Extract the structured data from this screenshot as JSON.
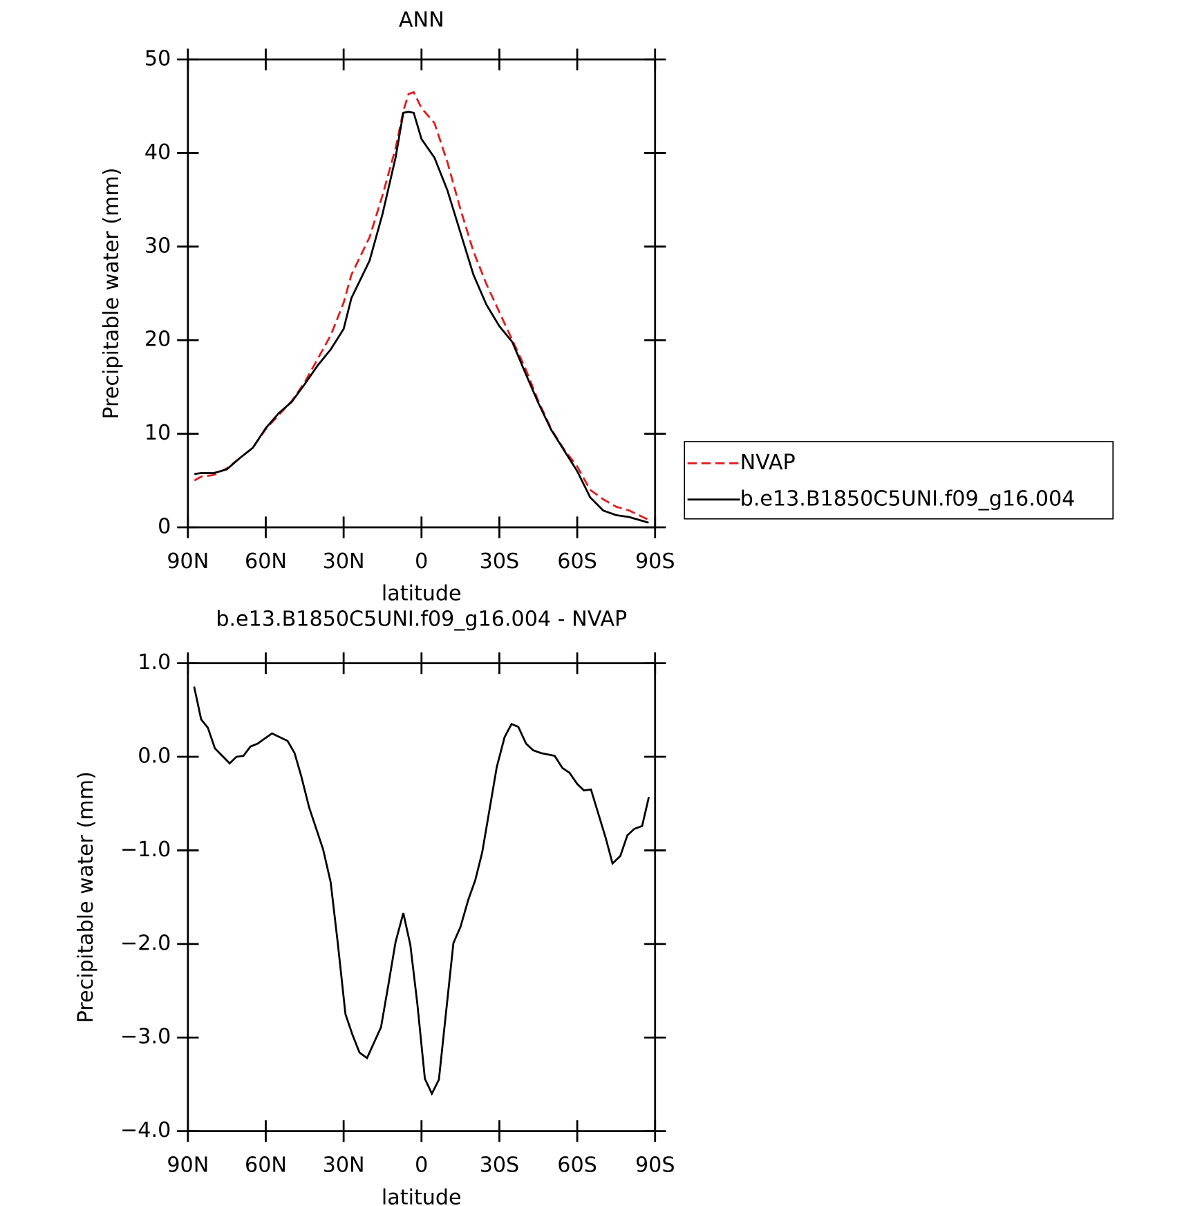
{
  "chart_data": [
    {
      "type": "line",
      "title": "ANN",
      "xlabel": "latitude",
      "ylabel": "Precipitable water (mm)",
      "x": [
        87.5,
        85,
        80,
        75,
        70,
        65,
        60,
        55,
        50,
        45,
        40,
        35,
        30,
        27,
        20,
        15,
        10,
        7,
        5,
        3,
        0,
        -5,
        -10,
        -15,
        -20,
        -25,
        -30,
        -35,
        -40,
        -45,
        -50,
        -55,
        -60,
        -65,
        -70,
        -75,
        -80,
        -87.5
      ],
      "series": [
        {
          "name": "NVAP",
          "color": "#e41a1c",
          "dashed": true,
          "values": [
            5.0,
            5.4,
            5.6,
            6.3,
            7.4,
            8.5,
            10.5,
            12.0,
            13.5,
            15.5,
            18.0,
            20.5,
            24.0,
            27.0,
            31.0,
            35.5,
            40.5,
            44.5,
            46.3,
            46.5,
            44.8,
            43.2,
            39.0,
            34.0,
            29.5,
            26.0,
            23.0,
            20.0,
            17.0,
            13.5,
            10.5,
            8.3,
            6.5,
            4.0,
            3.0,
            2.2,
            1.8,
            0.8
          ]
        },
        {
          "name": "b.e13.B1850C5UNI.f09_g16.004",
          "color": "#000000",
          "dashed": false,
          "values": [
            5.7,
            5.8,
            5.8,
            6.2,
            7.4,
            8.5,
            10.6,
            12.2,
            13.4,
            15.3,
            17.3,
            19.0,
            21.2,
            24.5,
            28.5,
            33.5,
            39.5,
            44.3,
            44.4,
            44.3,
            41.5,
            39.5,
            36.0,
            31.5,
            27.0,
            23.8,
            21.5,
            19.8,
            16.5,
            13.3,
            10.4,
            8.2,
            6.0,
            3.2,
            1.8,
            1.3,
            1.1,
            0.5
          ]
        }
      ],
      "xlim": [
        90,
        -90
      ],
      "xticks": [
        {
          "value": 90,
          "label": "90N"
        },
        {
          "value": 60,
          "label": "60N"
        },
        {
          "value": 30,
          "label": "30N"
        },
        0,
        {
          "value": -30,
          "label": "30S"
        },
        {
          "value": -60,
          "label": "60S"
        },
        {
          "value": -90,
          "label": "90S"
        }
      ],
      "ylim": [
        0,
        50
      ],
      "yticks": [
        0,
        10,
        20,
        30,
        40,
        50
      ],
      "legend": "right"
    },
    {
      "type": "line",
      "title": "b.e13.B1850C5UNI.f09_g16.004 - NVAP",
      "xlabel": "latitude",
      "ylabel": "Precipitable water (mm)",
      "x": [
        87.6,
        84.9,
        82.3,
        79.6,
        73.9,
        71.3,
        68.6,
        65.9,
        63.2,
        57.6,
        51.6,
        48.9,
        46.3,
        43.3,
        37.9,
        35.0,
        32.3,
        29.3,
        26.6,
        23.9,
        21.0,
        15.6,
        12.6,
        10.0,
        7.0,
        4.3,
        1.6,
        -1.3,
        -4.0,
        -6.7,
        -12.3,
        -15.0,
        -18.0,
        -20.7,
        -23.4,
        -29.0,
        -32.0,
        -34.7,
        -37.3,
        -40.3,
        -43.0,
        -46.0,
        -51.3,
        -54.3,
        -57.0,
        -60.0,
        -62.6,
        -65.3,
        -71.0,
        -73.6,
        -76.6,
        -79.3,
        -82.0,
        -85.0,
        -87.6
      ],
      "series": [
        {
          "name": "b.e13.B1850C5UNI.f09_g16.004 - NVAP",
          "color": "#000000",
          "dashed": false,
          "values": [
            0.75,
            0.4,
            0.31,
            0.09,
            -0.07,
            0.0,
            0.01,
            0.11,
            0.14,
            0.25,
            0.17,
            0.04,
            -0.21,
            -0.54,
            -0.99,
            -1.34,
            -1.98,
            -2.75,
            -2.97,
            -3.16,
            -3.22,
            -2.89,
            -2.41,
            -1.98,
            -1.67,
            -2.01,
            -2.64,
            -3.44,
            -3.6,
            -3.45,
            -1.99,
            -1.82,
            -1.53,
            -1.32,
            -1.02,
            -0.11,
            0.21,
            0.35,
            0.32,
            0.14,
            0.07,
            0.04,
            0.01,
            -0.12,
            -0.17,
            -0.29,
            -0.36,
            -0.35,
            -0.87,
            -1.14,
            -1.06,
            -0.84,
            -0.77,
            -0.74,
            -0.43
          ]
        }
      ],
      "xlim": [
        90,
        -90
      ],
      "xticks": [
        {
          "value": 90,
          "label": "90N"
        },
        {
          "value": 60,
          "label": "60N"
        },
        {
          "value": 30,
          "label": "30N"
        },
        0,
        {
          "value": -30,
          "label": "30S"
        },
        {
          "value": -60,
          "label": "60S"
        },
        {
          "value": -90,
          "label": "90S"
        }
      ],
      "ylim": [
        -4,
        1
      ],
      "yticks": [
        {
          "value": 1,
          "label": "1.0"
        },
        {
          "value": 0,
          "label": "0.0"
        },
        {
          "value": -1,
          "label": "−1.0"
        },
        {
          "value": -2,
          "label": "−2.0"
        },
        {
          "value": -3,
          "label": "−3.0"
        },
        {
          "value": -4,
          "label": "−4.0"
        }
      ]
    }
  ]
}
